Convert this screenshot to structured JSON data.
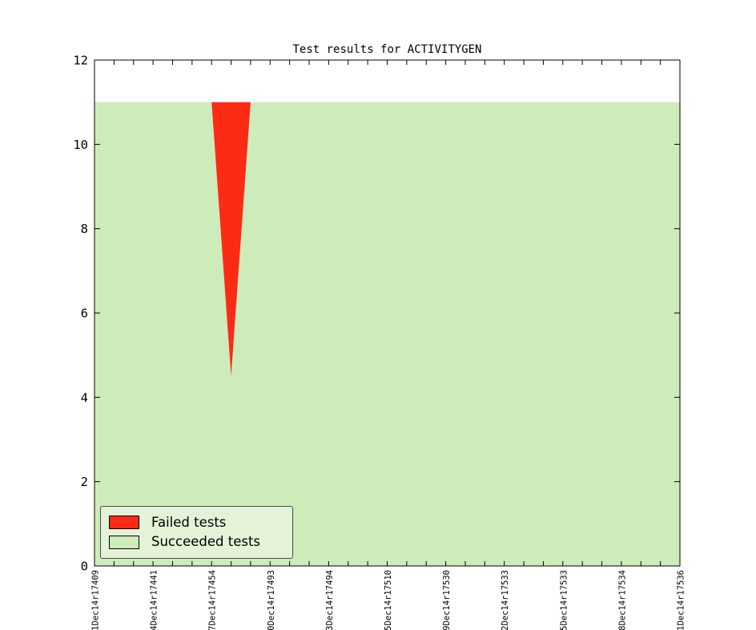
{
  "figure": {
    "background": "#ffffff",
    "plot_border_color": "#000000"
  },
  "chart_data": {
    "type": "area",
    "title": "Test results for ACTIVITYGEN",
    "xlabel": "",
    "ylabel": "",
    "ylim": [
      0,
      12
    ],
    "y_ticks": [
      0,
      2,
      4,
      6,
      8,
      10,
      12
    ],
    "grid": false,
    "num_points": 31,
    "x_label_every": 3,
    "x_tick_labels": [
      "1Dec14r17409",
      "4Dec14r17441",
      "7Dec14r17454",
      "0Dec14r17493",
      "3Dec14r17494",
      "5Dec14r17510",
      "9Dec14r17530",
      "2Dec14r17533",
      "5Dec14r17533",
      "8Dec14r17534",
      "1Dec14r17536"
    ],
    "series": [
      {
        "name": "Succeeded tests",
        "color": "#cdecba",
        "values": [
          11,
          11,
          11,
          11,
          11,
          11,
          11,
          4.5,
          11,
          11,
          11,
          11,
          11,
          11,
          11,
          11,
          11,
          11,
          11,
          11,
          11,
          11,
          11,
          11,
          11,
          11,
          11,
          11,
          11,
          11,
          11
        ]
      },
      {
        "name": "Failed tests",
        "color": "#fb2b16",
        "values": [
          0,
          0,
          0,
          0,
          0,
          0,
          0,
          6.5,
          0,
          0,
          0,
          0,
          0,
          0,
          0,
          0,
          0,
          0,
          0,
          0,
          0,
          0,
          0,
          0,
          0,
          0,
          0,
          0,
          0,
          0,
          0
        ]
      }
    ],
    "legend": {
      "position": "lower left",
      "background": "#e4f3d8",
      "border_color": "#4a4a4a",
      "entries": [
        {
          "label": "Failed tests",
          "color": "#fb2b16"
        },
        {
          "label": "Succeeded tests",
          "color": "#cdecba"
        }
      ]
    }
  }
}
